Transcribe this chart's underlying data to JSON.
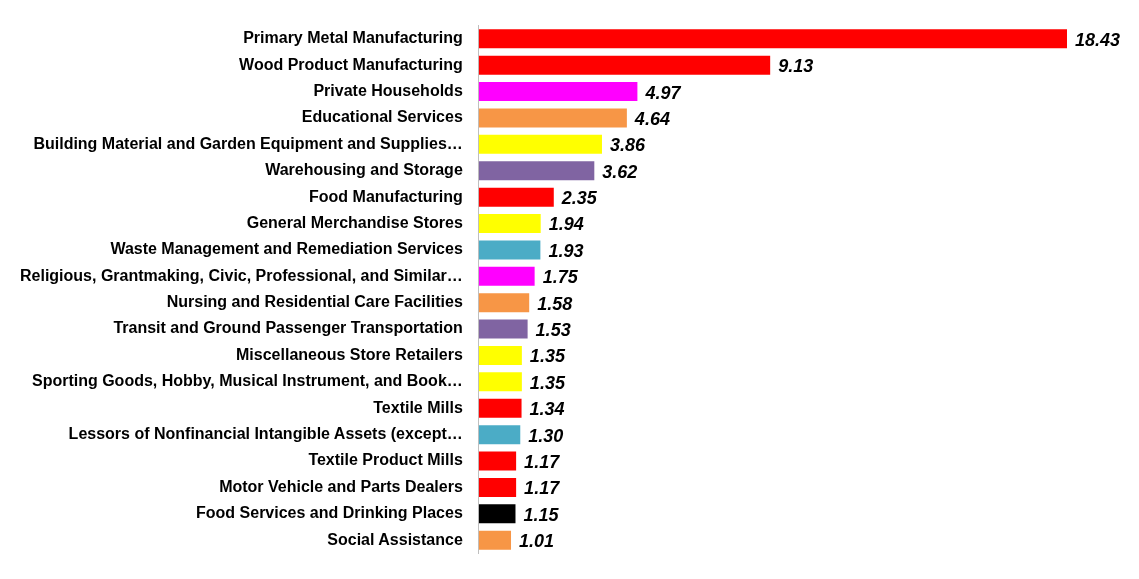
{
  "chart_data": {
    "type": "bar",
    "orientation": "horizontal",
    "data_labels": true,
    "legend": false,
    "categories": [
      "Primary Metal Manufacturing",
      "Wood Product Manufacturing",
      "Private Households",
      "Educational Services",
      "Building Material and Garden Equipment and Supplies…",
      "Warehousing and Storage",
      "Food Manufacturing",
      "General Merchandise Stores",
      "Waste Management and Remediation Services",
      "Religious, Grantmaking, Civic, Professional, and Similar…",
      "Nursing and Residential Care Facilities",
      "Transit and Ground Passenger Transportation",
      "Miscellaneous Store Retailers",
      "Sporting Goods, Hobby, Musical Instrument, and Book…",
      "Textile Mills",
      "Lessors of Nonfinancial Intangible Assets (except…",
      "Textile Product Mills",
      "Motor Vehicle and Parts Dealers",
      "Food Services and Drinking Places",
      "Social Assistance"
    ],
    "values": [
      18.43,
      9.13,
      4.97,
      4.64,
      3.86,
      3.62,
      2.35,
      1.94,
      1.93,
      1.75,
      1.58,
      1.53,
      1.35,
      1.35,
      1.34,
      1.3,
      1.17,
      1.17,
      1.15,
      1.01
    ],
    "value_labels": [
      "18.43",
      "9.13",
      "4.97",
      "4.64",
      "3.86",
      "3.62",
      "2.35",
      "1.94",
      "1.93",
      "1.75",
      "1.58",
      "1.53",
      "1.35",
      "1.35",
      "1.34",
      "1.30",
      "1.17",
      "1.17",
      "1.15",
      "1.01"
    ],
    "colors": [
      "#ff0000",
      "#ff0000",
      "#ff00ff",
      "#f79646",
      "#ffff00",
      "#8064a2",
      "#ff0000",
      "#ffff00",
      "#4bacc6",
      "#ff00ff",
      "#f79646",
      "#8064a2",
      "#ffff00",
      "#ffff00",
      "#ff0000",
      "#4bacc6",
      "#ff0000",
      "#ff0000",
      "#000000",
      "#f79646"
    ]
  }
}
